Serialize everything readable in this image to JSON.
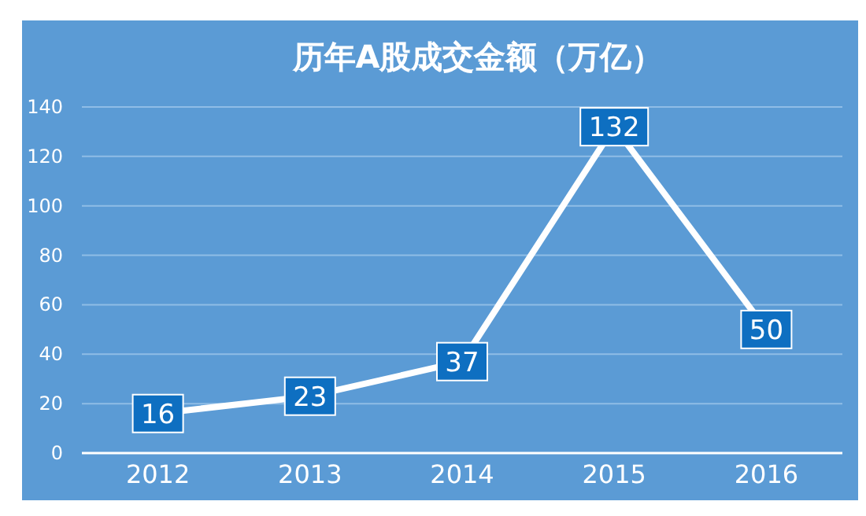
{
  "chart_data": {
    "type": "line",
    "title": "历年A股成交金额（万亿）",
    "categories": [
      "2012",
      "2013",
      "2014",
      "2015",
      "2016"
    ],
    "series": [
      {
        "color": "#ffffff",
        "values": [
          16,
          23,
          37,
          132,
          50
        ]
      }
    ],
    "ylim": [
      0,
      140
    ],
    "yticks": [
      0,
      20,
      40,
      60,
      80,
      100,
      120,
      140
    ],
    "grid": "y",
    "data_labels": true,
    "marker": "square",
    "line_style": "solid"
  }
}
